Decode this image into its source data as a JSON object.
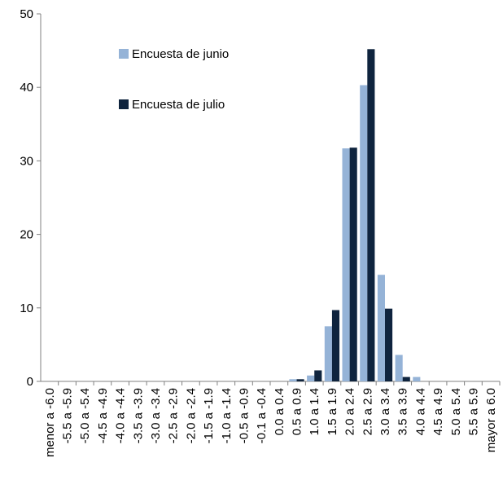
{
  "chart_data": {
    "type": "bar",
    "categories": [
      "menor a -6.0",
      "-5.5 a -5.9",
      "-5.0 a -5.4",
      "-4.5 a -4.9",
      "-4.0 a -4.4",
      "-3.5 a -3.9",
      "-3.0 a -3.4",
      "-2.5 a -2.9",
      "-2.0 a -2.4",
      "-1.5 a -1.9",
      "-1.0 a -1.4",
      "-0.5 a -0.9",
      "-0.1 a -0.4",
      "0.0 a 0.4",
      "0.5 a 0.9",
      "1.0 a 1.4",
      "1.5 a 1.9",
      "2.0 a 2.4",
      "2.5 a 2.9",
      "3.0 a 3.4",
      "3.5 a 3.9",
      "4.0 a 4.4",
      "4.5 a 4.9",
      "5.0 a 5.4",
      "5.5 a 5.9",
      "mayor a 6.0"
    ],
    "series": [
      {
        "name": "Encuesta de junio",
        "color": "#95b3d7",
        "values": [
          0,
          0,
          0,
          0,
          0,
          0,
          0,
          0,
          0,
          0,
          0,
          0,
          0,
          0,
          0.3,
          0.8,
          7.5,
          31.7,
          40.3,
          14.5,
          3.6,
          0.6,
          0,
          0,
          0,
          0
        ]
      },
      {
        "name": "Encuesta de julio",
        "color": "#0f243e",
        "values": [
          0,
          0,
          0,
          0,
          0,
          0,
          0,
          0,
          0,
          0,
          0,
          0,
          0,
          0,
          0.3,
          1.5,
          9.7,
          31.8,
          45.2,
          9.9,
          0.6,
          0,
          0,
          0,
          0,
          0
        ]
      }
    ],
    "ylim": [
      0,
      50
    ],
    "yticks": [
      0,
      10,
      20,
      30,
      40,
      50
    ],
    "grid": false,
    "legend": "top-left"
  }
}
